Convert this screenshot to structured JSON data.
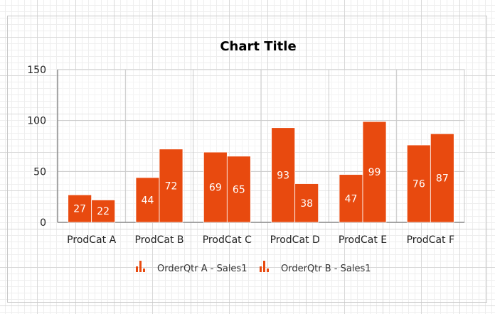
{
  "chart_data": {
    "type": "bar",
    "title": "Chart Title",
    "categories": [
      "ProdCat A",
      "ProdCat B",
      "ProdCat C",
      "ProdCat D",
      "ProdCat E",
      "ProdCat F"
    ],
    "series": [
      {
        "name": "OrderQtr A - Sales1",
        "values": [
          27,
          44,
          69,
          93,
          47,
          76
        ],
        "color": "#e84a0f"
      },
      {
        "name": "OrderQtr B - Sales1",
        "values": [
          22,
          72,
          65,
          38,
          99,
          87
        ],
        "color": "#e84a0f"
      }
    ],
    "y_ticks": [
      0,
      50,
      100,
      150
    ],
    "ylim": [
      0,
      150
    ],
    "grid": true,
    "legend_position": "bottom",
    "legend_icon": "bar-chart-icon"
  }
}
